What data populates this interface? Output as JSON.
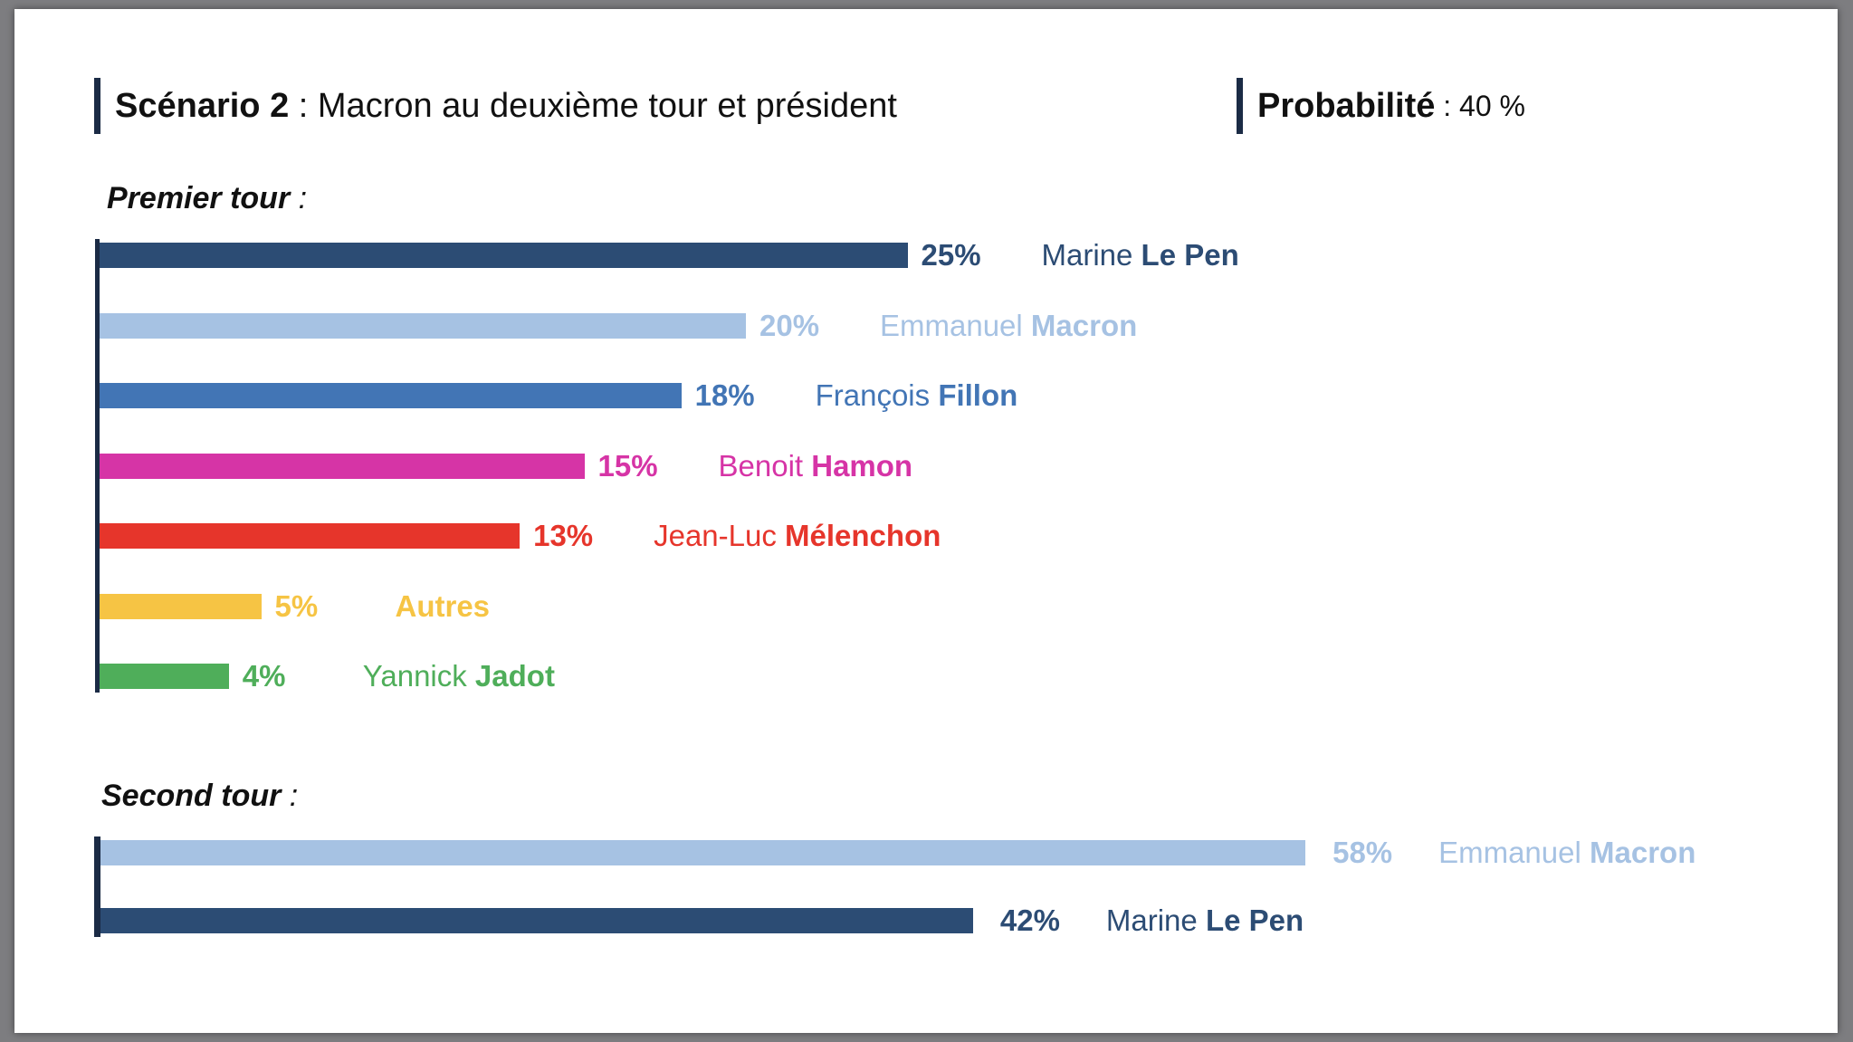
{
  "header": {
    "scenario_label": "Scénario 2",
    "separator": " : ",
    "scenario_title": "Macron au deuxième tour et président",
    "probability_label": "Probabilité",
    "probability_value": " : 40 %"
  },
  "colors": {
    "lepen": "#2c4c74",
    "macron": "#a6c2e3",
    "fillon": "#4275b5",
    "hamon": "#d634a6",
    "melenchon": "#e6352b",
    "autres": "#f6c444",
    "jadot": "#4fae5a",
    "axis": "#1b2b45"
  },
  "chart_data": [
    {
      "type": "bar",
      "orientation": "horizontal",
      "title": "Premier tour",
      "title_suffix": " :",
      "unit": "%",
      "series": [
        {
          "value": 25,
          "value_label": "25%",
          "first_name": "Marine",
          "last_name": "Le Pen",
          "last_bold": true,
          "color": "#2c4c74"
        },
        {
          "value": 20,
          "value_label": "20%",
          "first_name": "Emmanuel",
          "last_name": "Macron",
          "last_bold": true,
          "color": "#a6c2e3"
        },
        {
          "value": 18,
          "value_label": "18%",
          "first_name": "François",
          "last_name": "Fillon",
          "last_bold": true,
          "color": "#4275b5"
        },
        {
          "value": 15,
          "value_label": "15%",
          "first_name": "Benoit",
          "last_name": "Hamon",
          "last_bold": true,
          "color": "#d634a6"
        },
        {
          "value": 13,
          "value_label": "13%",
          "first_name": "Jean-Luc",
          "last_name": "Mélenchon",
          "last_bold": true,
          "color": "#e6352b"
        },
        {
          "value": 5,
          "value_label": "5%",
          "first_name": "",
          "last_name": "Autres",
          "last_bold": true,
          "color": "#f6c444"
        },
        {
          "value": 4,
          "value_label": "4%",
          "first_name": "Yannick",
          "last_name": "Jadot",
          "last_bold": true,
          "color": "#4fae5a"
        }
      ]
    },
    {
      "type": "bar",
      "orientation": "horizontal",
      "title": "Second tour",
      "title_suffix": " :",
      "unit": "%",
      "series": [
        {
          "value": 58,
          "value_label": "58%",
          "first_name": "Emmanuel",
          "last_name": "Macron",
          "last_bold": true,
          "color": "#a6c2e3"
        },
        {
          "value": 42,
          "value_label": "42%",
          "first_name": "Marine",
          "last_name": "Le Pen",
          "last_bold": true,
          "color": "#2c4c74"
        }
      ]
    }
  ]
}
